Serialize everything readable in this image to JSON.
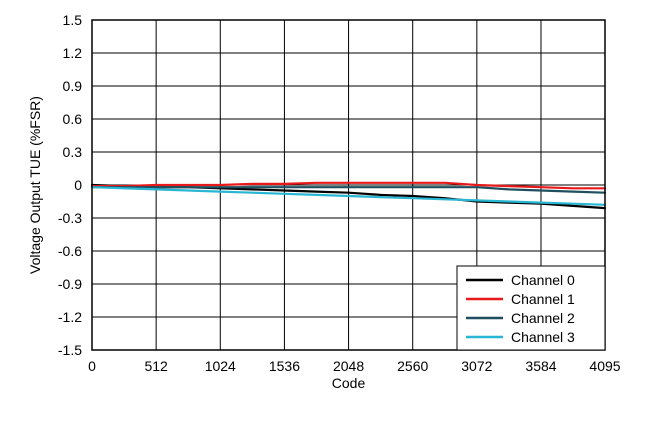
{
  "chart_data": {
    "type": "line",
    "title": "",
    "xlabel": "Code",
    "ylabel": "Voltage Output TUE (%FSR)",
    "xlim": [
      0,
      4095
    ],
    "ylim": [
      -1.5,
      1.5
    ],
    "x_ticks": [
      "0",
      "512",
      "1024",
      "1536",
      "2048",
      "2560",
      "3072",
      "3584",
      "4095"
    ],
    "y_ticks": [
      "1.5",
      "1.2",
      "0.9",
      "0.6",
      "0.3",
      "0",
      "-0.3",
      "-0.6",
      "-0.9",
      "-1.2",
      "-1.5"
    ],
    "x_tick_values": [
      0,
      512,
      1024,
      1536,
      2048,
      2560,
      3072,
      3584,
      4095
    ],
    "y_tick_values": [
      1.5,
      1.2,
      0.9,
      0.6,
      0.3,
      0,
      -0.3,
      -0.6,
      -0.9,
      -1.2,
      -1.5
    ],
    "grid": true,
    "legend_position": "bottom-right",
    "x": [
      0,
      256,
      512,
      768,
      1024,
      1280,
      1536,
      1792,
      2048,
      2304,
      2560,
      2816,
      3072,
      3328,
      3584,
      3840,
      4095
    ],
    "series": [
      {
        "name": "Channel 0",
        "color": "#000000",
        "values": [
          0.0,
          -0.01,
          -0.02,
          -0.02,
          -0.03,
          -0.04,
          -0.05,
          -0.06,
          -0.07,
          -0.09,
          -0.1,
          -0.12,
          -0.15,
          -0.16,
          -0.17,
          -0.19,
          -0.21
        ]
      },
      {
        "name": "Channel 1",
        "color": "#e8191b",
        "values": [
          -0.01,
          -0.01,
          0.0,
          0.0,
          0.0,
          0.01,
          0.01,
          0.02,
          0.02,
          0.02,
          0.02,
          0.02,
          0.0,
          -0.01,
          -0.02,
          -0.03,
          -0.03
        ]
      },
      {
        "name": "Channel 2",
        "color": "#1f4f5f",
        "values": [
          -0.02,
          -0.02,
          -0.02,
          -0.02,
          -0.02,
          -0.02,
          -0.02,
          -0.02,
          -0.02,
          -0.02,
          -0.02,
          -0.02,
          -0.02,
          -0.04,
          -0.05,
          -0.06,
          -0.07
        ]
      },
      {
        "name": "Channel 3",
        "color": "#29b6d2",
        "values": [
          -0.02,
          -0.03,
          -0.04,
          -0.05,
          -0.06,
          -0.07,
          -0.08,
          -0.09,
          -0.1,
          -0.11,
          -0.12,
          -0.13,
          -0.14,
          -0.15,
          -0.16,
          -0.17,
          -0.18
        ]
      }
    ]
  }
}
